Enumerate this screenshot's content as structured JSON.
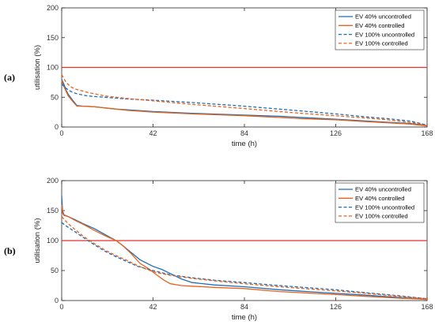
{
  "colors": {
    "uncontrolled_40": "#1f6fb8",
    "controlled_40": "#e8631c",
    "uncontrolled_100": "#1f6fb8",
    "controlled_100": "#e8631c",
    "limit": "#e3312e"
  },
  "chart_data": [
    {
      "type": "line",
      "panel_label": "(a)",
      "xlabel": "time (h)",
      "ylabel": "utilisation (%)",
      "xlim": [
        0,
        168
      ],
      "ylim": [
        0,
        200
      ],
      "xticks": [
        0,
        42,
        84,
        126,
        168
      ],
      "yticks": [
        0,
        50,
        100,
        150,
        200
      ],
      "grid": false,
      "legend_position": "top-right",
      "reference_line": {
        "y": 100
      },
      "series": [
        {
          "name": "EV 40% uncontrolled",
          "dash": "solid",
          "x": [
            0,
            1,
            2,
            3,
            5,
            7,
            10,
            15,
            20,
            25,
            30,
            42,
            60,
            84,
            100,
            110,
            126,
            140,
            150,
            160,
            165,
            168
          ],
          "y": [
            80,
            72,
            62,
            55,
            45,
            36,
            35,
            34,
            32,
            30,
            29,
            26,
            23,
            20,
            18,
            16,
            13,
            10,
            8,
            6,
            4,
            2
          ]
        },
        {
          "name": "EV 40% controlled",
          "dash": "solid",
          "x": [
            0,
            1,
            2,
            3,
            5,
            7,
            10,
            15,
            20,
            25,
            30,
            42,
            60,
            84,
            100,
            110,
            126,
            140,
            150,
            160,
            165,
            168
          ],
          "y": [
            78,
            68,
            60,
            52,
            43,
            35,
            35,
            34,
            32,
            30,
            28,
            25,
            22,
            19,
            16,
            14,
            12,
            9,
            7,
            5,
            3,
            2
          ]
        },
        {
          "name": "EV 100% uncontrolled",
          "dash": "dashed",
          "x": [
            0,
            2,
            4,
            6,
            8,
            12,
            20,
            30,
            42,
            60,
            84,
            100,
            110,
            126,
            140,
            150,
            160,
            165,
            168
          ],
          "y": [
            72,
            65,
            60,
            57,
            55,
            52,
            50,
            47,
            45,
            41,
            35,
            30,
            27,
            22,
            17,
            14,
            10,
            6,
            3
          ]
        },
        {
          "name": "EV 100% controlled",
          "dash": "dashed",
          "x": [
            0,
            2,
            4,
            6,
            8,
            12,
            20,
            30,
            42,
            60,
            84,
            100,
            110,
            126,
            140,
            150,
            160,
            165,
            168
          ],
          "y": [
            88,
            75,
            68,
            64,
            62,
            58,
            52,
            48,
            44,
            38,
            31,
            26,
            23,
            19,
            15,
            12,
            8,
            5,
            2
          ]
        }
      ]
    },
    {
      "type": "line",
      "panel_label": "(b)",
      "xlabel": "time (h)",
      "ylabel": "utilisation (%)",
      "xlim": [
        0,
        168
      ],
      "ylim": [
        0,
        200
      ],
      "xticks": [
        0,
        42,
        84,
        126,
        168
      ],
      "yticks": [
        0,
        50,
        100,
        150,
        200
      ],
      "grid": false,
      "legend_position": "top-right",
      "reference_line": {
        "y": 100
      },
      "series": [
        {
          "name": "EV 40% uncontrolled",
          "dash": "solid",
          "x": [
            0,
            0.4,
            1,
            3,
            6,
            10,
            15,
            20,
            25,
            28,
            32,
            36,
            42,
            46,
            50,
            55,
            60,
            70,
            84,
            100,
            126,
            140,
            155,
            168
          ],
          "y": [
            175,
            150,
            143,
            140,
            135,
            128,
            120,
            110,
            100,
            92,
            80,
            68,
            57,
            52,
            45,
            36,
            30,
            26,
            23,
            18,
            12,
            9,
            5,
            2
          ]
        },
        {
          "name": "EV 40% controlled",
          "dash": "solid",
          "x": [
            0,
            0.5,
            1,
            3,
            6,
            10,
            15,
            20,
            25,
            28,
            32,
            36,
            40,
            44,
            47,
            50,
            55,
            60,
            70,
            84,
            100,
            126,
            140,
            155,
            168
          ],
          "y": [
            160,
            145,
            142,
            140,
            134,
            127,
            117,
            108,
            100,
            92,
            78,
            62,
            53,
            42,
            34,
            28,
            25,
            24,
            22,
            20,
            15,
            10,
            7,
            4,
            2
          ]
        },
        {
          "name": "EV 100% uncontrolled",
          "dash": "dashed",
          "x": [
            0,
            3,
            6,
            10,
            15,
            20,
            25,
            30,
            35,
            42,
            50,
            60,
            70,
            84,
            100,
            126,
            140,
            155,
            168
          ],
          "y": [
            130,
            122,
            115,
            105,
            93,
            82,
            73,
            65,
            57,
            50,
            43,
            38,
            34,
            30,
            25,
            18,
            13,
            8,
            3
          ]
        },
        {
          "name": "EV 100% controlled",
          "dash": "dashed",
          "x": [
            0,
            3,
            6,
            10,
            15,
            20,
            25,
            30,
            35,
            42,
            50,
            60,
            70,
            84,
            100,
            126,
            140,
            155,
            168
          ],
          "y": [
            140,
            128,
            119,
            107,
            95,
            84,
            75,
            67,
            58,
            48,
            42,
            37,
            33,
            28,
            23,
            16,
            12,
            7,
            3
          ]
        }
      ]
    }
  ]
}
